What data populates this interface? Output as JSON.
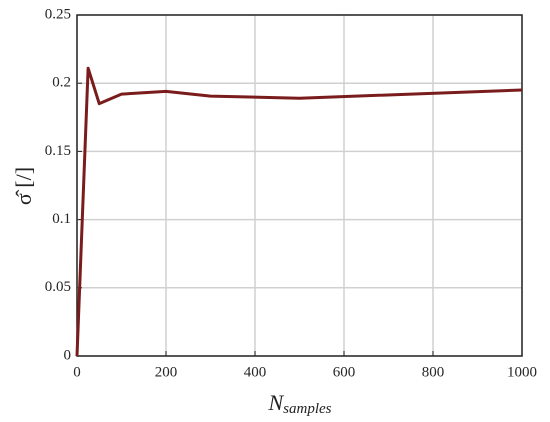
{
  "chart_data": {
    "type": "line",
    "xlabel": "N",
    "xlabel_subscript": "samples",
    "ylabel": "σ̂ [/]",
    "x": [
      0,
      25,
      50,
      100,
      200,
      300,
      500,
      1000
    ],
    "series": [
      {
        "color": "#7a1c1c",
        "values": [
          0,
          0.211,
          0.185,
          0.192,
          0.194,
          0.1905,
          0.189,
          0.195
        ]
      }
    ],
    "xlim": [
      0,
      1000
    ],
    "xticks": [
      0,
      200,
      400,
      600,
      800,
      1000
    ],
    "ylim": [
      0,
      0.25
    ],
    "yticks": [
      0,
      0.05,
      0.1,
      0.15,
      0.2,
      0.25
    ],
    "grid": true
  }
}
